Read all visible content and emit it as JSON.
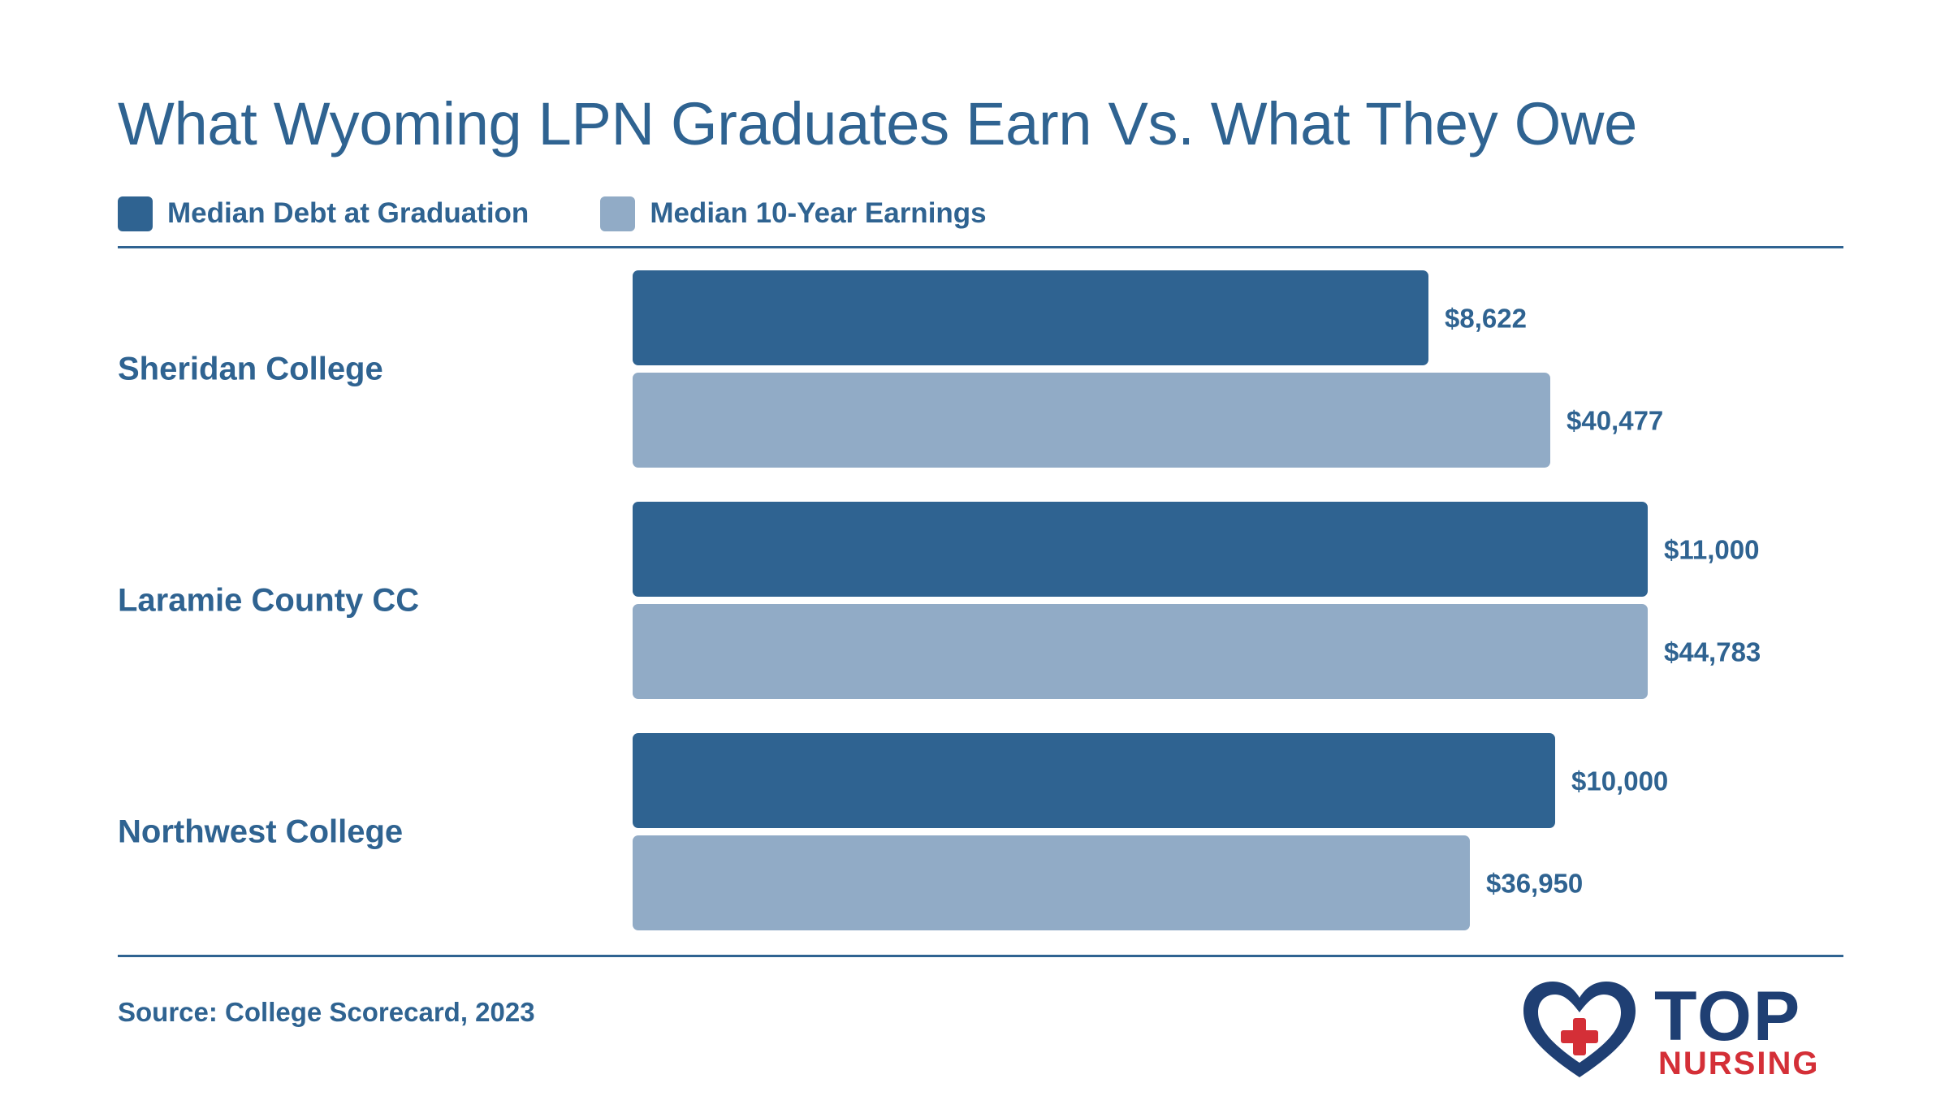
{
  "chart_data": {
    "type": "bar",
    "orientation": "horizontal",
    "title": "What Wyoming LPN Graduates Earn Vs. What They Owe",
    "categories": [
      "Sheridan College",
      "Laramie County CC",
      "Northwest College"
    ],
    "series": [
      {
        "name": "Median Debt at Graduation",
        "color": "#2f6391",
        "values": [
          8622,
          11000,
          10000
        ],
        "labels": [
          "$8,622",
          "$11,000",
          "$10,000"
        ],
        "scale_max": 11000
      },
      {
        "name": "Median 10-Year Earnings",
        "color": "#91abc6",
        "values": [
          40477,
          44783,
          36950
        ],
        "labels": [
          "$40,477",
          "$44,783",
          "$36,950"
        ],
        "scale_max": 44783
      }
    ],
    "legend_position": "top-left",
    "grid": false
  },
  "source": "Source: College Scorecard, 2023",
  "logo": {
    "top": "TOP",
    "nursing": "NURSING",
    "colors": {
      "navy": "#1f3f73",
      "red": "#d42f37"
    }
  }
}
